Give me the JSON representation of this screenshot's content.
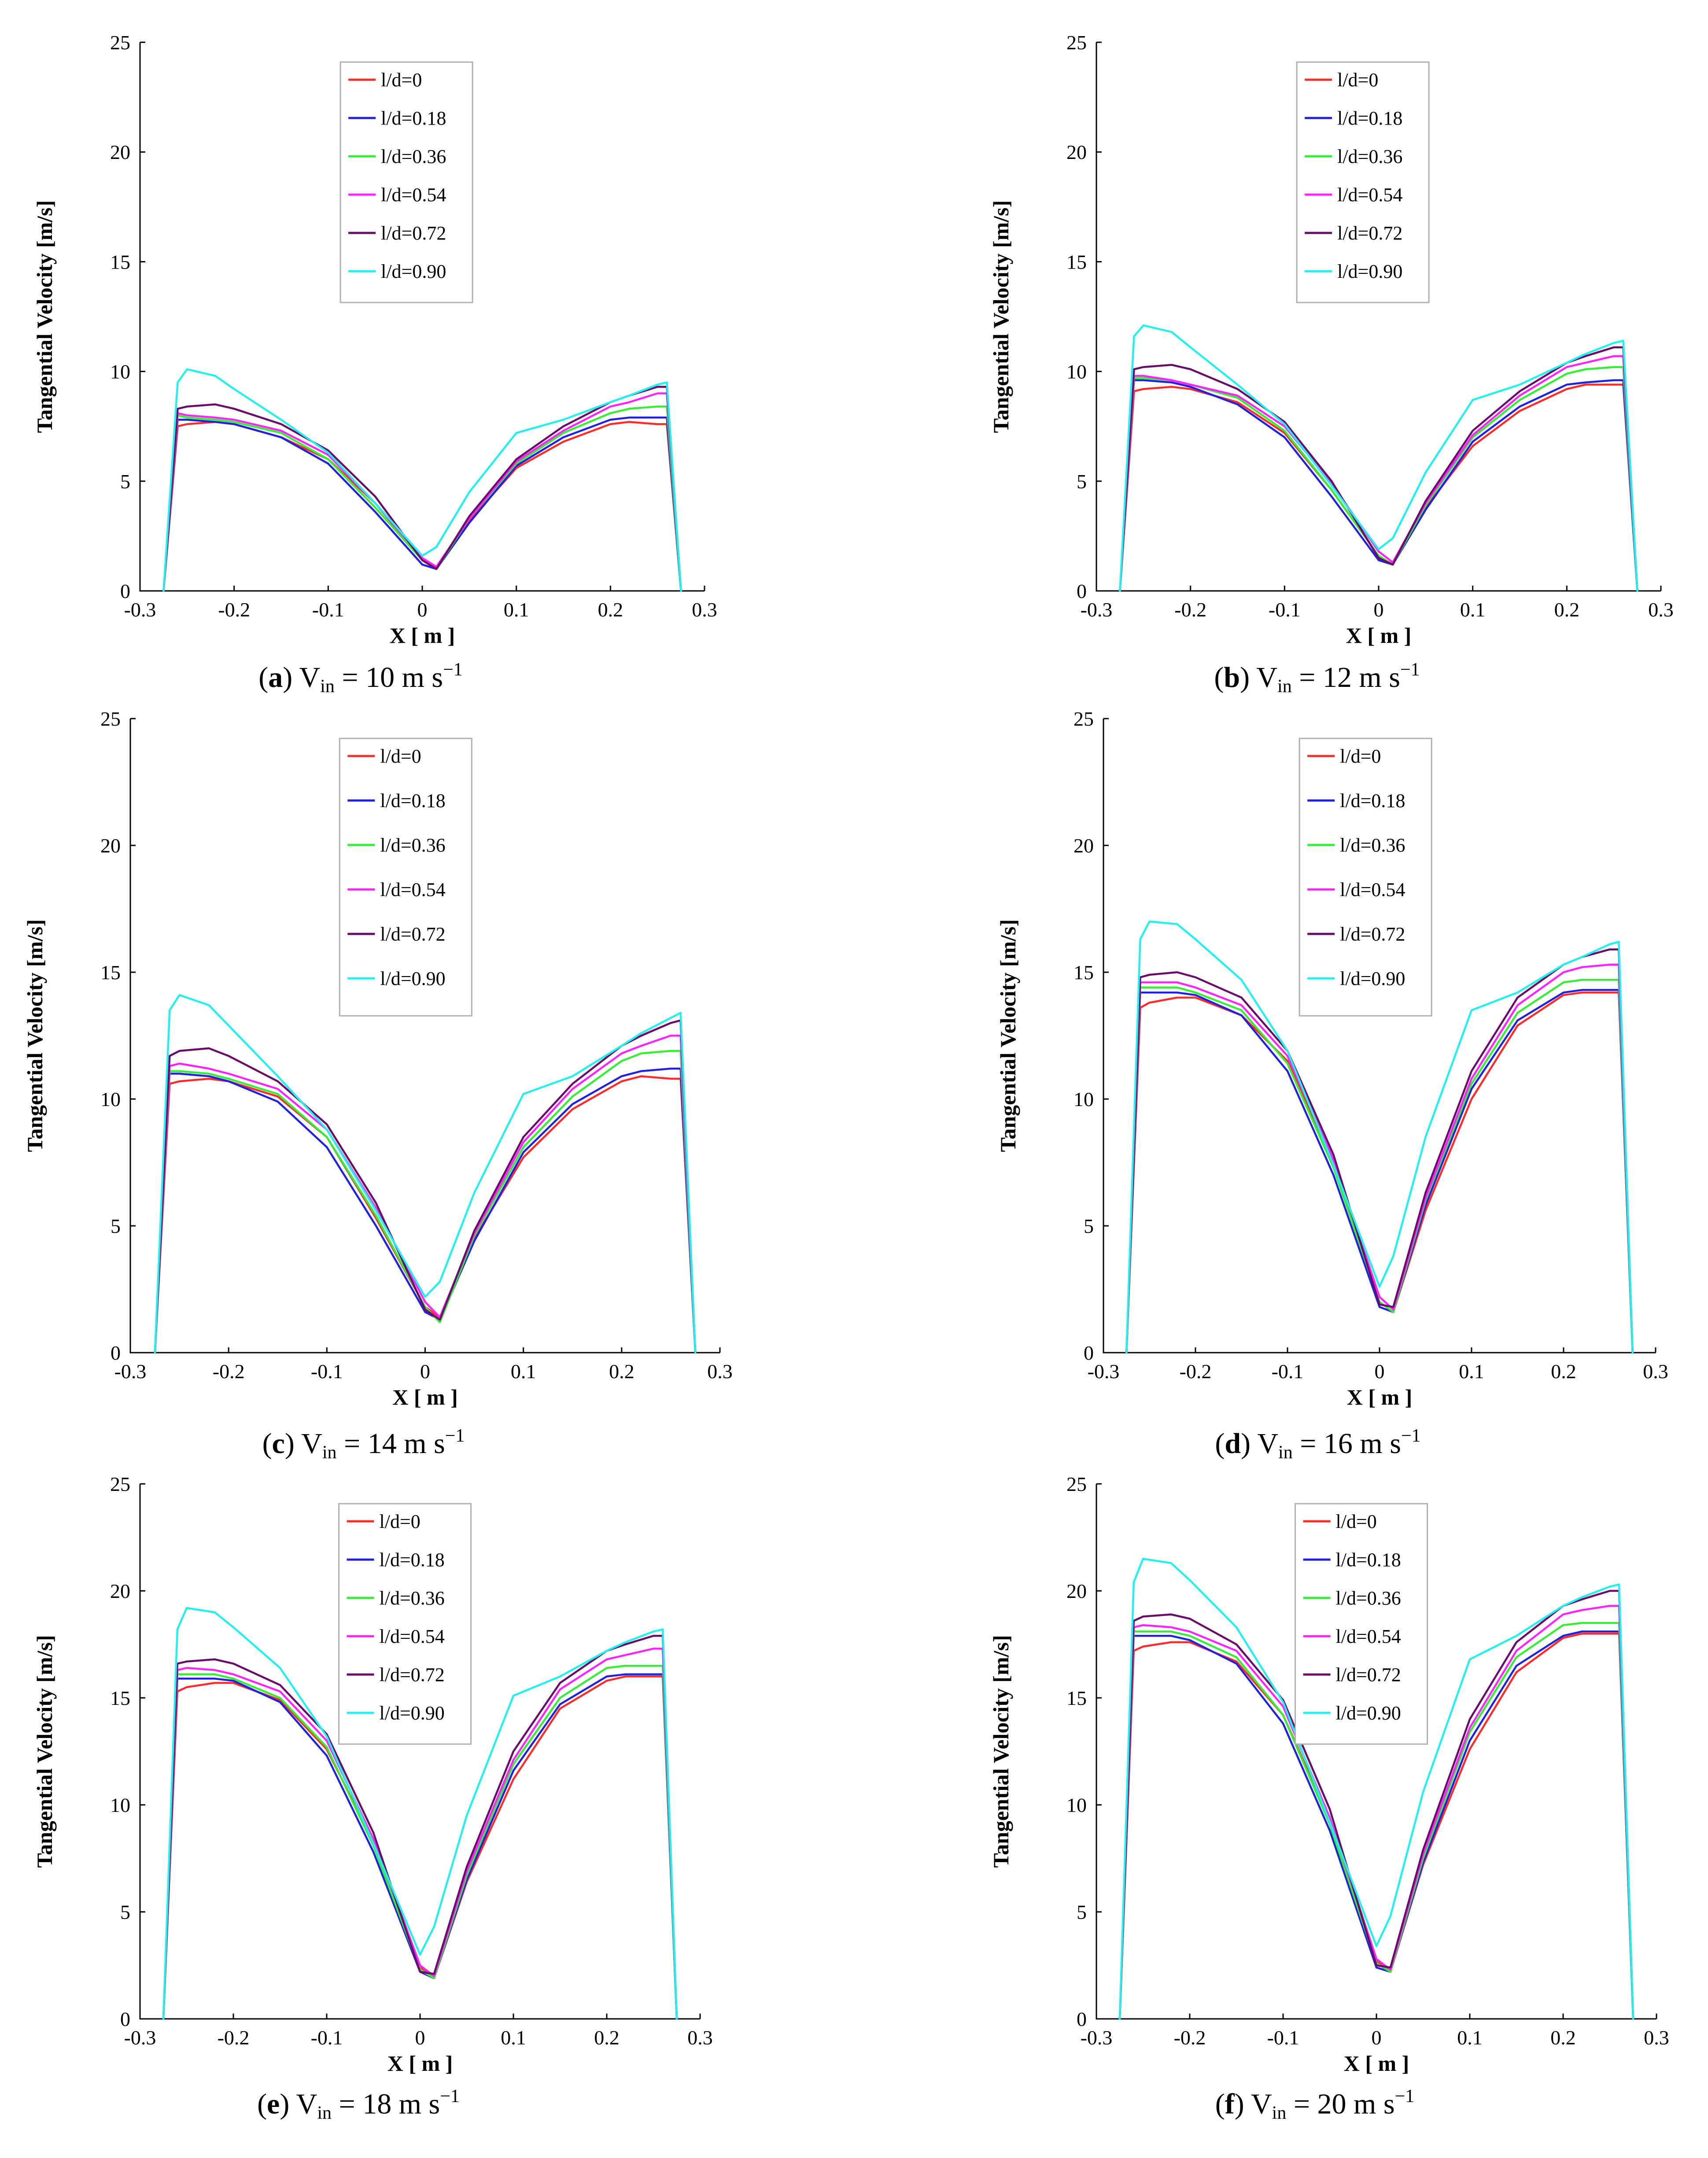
{
  "colors": {
    "l/d=0": "#ff2a2a",
    "l/d=0.18": "#2020e0",
    "l/d=0.36": "#33ee33",
    "l/d=0.54": "#ff22ff",
    "l/d=0.72": "#6a0a6a",
    "l/d=0.90": "#22f0f0"
  },
  "chart_data": [
    {
      "type": "line",
      "caption": {
        "letter": "a",
        "text": "V",
        "sub": "in",
        "rest": " = 10 m s",
        "sup": "−1"
      },
      "xlabel": "X [ m ]",
      "ylabel": "Tangential Velocity [m/s]",
      "xlim": [
        -0.3,
        0.3
      ],
      "ylim": [
        0,
        25
      ],
      "xticks": [
        "-0.3",
        "-0.2",
        "-0.1",
        "0",
        "0.1",
        "0.2",
        "0.3"
      ],
      "yticks": [
        "0",
        "5",
        "10",
        "15",
        "20",
        "25"
      ],
      "x": [
        -0.275,
        -0.26,
        -0.25,
        -0.22,
        -0.2,
        -0.15,
        -0.1,
        -0.05,
        0,
        0.015,
        0.05,
        0.1,
        0.15,
        0.2,
        0.22,
        0.25,
        0.26,
        0.275
      ],
      "series": [
        {
          "name": "l/d=0",
          "values": [
            0,
            7.5,
            7.6,
            7.7,
            7.6,
            7.0,
            6.0,
            4.0,
            1.4,
            1.0,
            3.2,
            5.6,
            6.8,
            7.6,
            7.7,
            7.6,
            7.6,
            0
          ]
        },
        {
          "name": "l/d=0.18",
          "values": [
            0,
            7.8,
            7.8,
            7.7,
            7.6,
            7.0,
            5.8,
            3.6,
            1.2,
            1.0,
            3.1,
            5.7,
            7.0,
            7.8,
            7.9,
            7.9,
            7.9,
            0
          ]
        },
        {
          "name": "l/d=0.36",
          "values": [
            0,
            8.0,
            7.9,
            7.8,
            7.7,
            7.2,
            6.0,
            3.8,
            1.4,
            1.0,
            3.3,
            5.8,
            7.2,
            8.1,
            8.3,
            8.4,
            8.4,
            0
          ]
        },
        {
          "name": "l/d=0.54",
          "values": [
            0,
            8.1,
            8.0,
            7.9,
            7.8,
            7.3,
            6.2,
            4.0,
            1.5,
            1.1,
            3.3,
            5.9,
            7.3,
            8.4,
            8.6,
            9.0,
            9.0,
            0
          ]
        },
        {
          "name": "l/d=0.72",
          "values": [
            0,
            8.3,
            8.4,
            8.5,
            8.3,
            7.6,
            6.4,
            4.3,
            1.4,
            1.0,
            3.4,
            6.0,
            7.5,
            8.6,
            8.9,
            9.3,
            9.3,
            0
          ]
        },
        {
          "name": "l/d=0.90",
          "values": [
            0,
            9.5,
            10.1,
            9.8,
            9.2,
            7.8,
            6.3,
            4.0,
            1.6,
            2.0,
            4.5,
            7.2,
            7.8,
            8.6,
            8.9,
            9.4,
            9.5,
            0
          ]
        }
      ]
    },
    {
      "type": "line",
      "caption": {
        "letter": "b",
        "text": "V",
        "sub": "in",
        "rest": " = 12 m s",
        "sup": "−1"
      },
      "xlabel": "X [ m ]",
      "ylabel": "Tangential Velocity [m/s]",
      "xlim": [
        -0.3,
        0.3
      ],
      "ylim": [
        0,
        25
      ],
      "xticks": [
        "-0.3",
        "-0.2",
        "-0.1",
        "0",
        "0.1",
        "0.2",
        "0.3"
      ],
      "yticks": [
        "0",
        "5",
        "10",
        "15",
        "20",
        "25"
      ],
      "x": [
        -0.275,
        -0.26,
        -0.25,
        -0.22,
        -0.2,
        -0.15,
        -0.1,
        -0.05,
        0,
        0.015,
        0.05,
        0.1,
        0.15,
        0.2,
        0.22,
        0.25,
        0.26,
        0.275
      ],
      "series": [
        {
          "name": "l/d=0",
          "values": [
            0,
            9.1,
            9.2,
            9.3,
            9.2,
            8.6,
            7.2,
            4.6,
            1.6,
            1.2,
            3.8,
            6.6,
            8.2,
            9.2,
            9.4,
            9.4,
            9.4,
            0
          ]
        },
        {
          "name": "l/d=0.18",
          "values": [
            0,
            9.6,
            9.6,
            9.5,
            9.3,
            8.5,
            7.0,
            4.3,
            1.4,
            1.2,
            3.7,
            6.8,
            8.4,
            9.4,
            9.5,
            9.6,
            9.6,
            0
          ]
        },
        {
          "name": "l/d=0.36",
          "values": [
            0,
            9.7,
            9.7,
            9.6,
            9.4,
            8.8,
            7.3,
            4.6,
            1.6,
            1.2,
            3.9,
            7.0,
            8.7,
            9.9,
            10.1,
            10.2,
            10.2,
            0
          ]
        },
        {
          "name": "l/d=0.54",
          "values": [
            0,
            9.8,
            9.8,
            9.6,
            9.4,
            8.9,
            7.5,
            4.9,
            1.8,
            1.3,
            4.0,
            7.1,
            8.9,
            10.2,
            10.4,
            10.7,
            10.7,
            0
          ]
        },
        {
          "name": "l/d=0.72",
          "values": [
            0,
            10.1,
            10.2,
            10.3,
            10.1,
            9.2,
            7.7,
            5.0,
            1.5,
            1.2,
            4.1,
            7.3,
            9.1,
            10.4,
            10.7,
            11.1,
            11.1,
            0
          ]
        },
        {
          "name": "l/d=0.90",
          "values": [
            0,
            11.6,
            12.1,
            11.8,
            11.1,
            9.4,
            7.6,
            4.8,
            1.9,
            2.4,
            5.4,
            8.7,
            9.4,
            10.4,
            10.8,
            11.3,
            11.4,
            0
          ]
        }
      ]
    },
    {
      "type": "line",
      "caption": {
        "letter": "c",
        "text": "V",
        "sub": "in",
        "rest": " = 14 m s",
        "sup": "−1"
      },
      "xlabel": "X [ m ]",
      "ylabel": "Tangential Velocity [m/s]",
      "xlim": [
        -0.3,
        0.3
      ],
      "ylim": [
        0,
        25
      ],
      "xticks": [
        "-0.3",
        "-0.2",
        "-0.1",
        "0",
        "0.1",
        "0.2",
        "0.3"
      ],
      "yticks": [
        "0",
        "5",
        "10",
        "15",
        "20",
        "25"
      ],
      "x": [
        -0.275,
        -0.26,
        -0.25,
        -0.22,
        -0.2,
        -0.15,
        -0.1,
        -0.05,
        0,
        0.015,
        0.05,
        0.1,
        0.15,
        0.2,
        0.22,
        0.25,
        0.26,
        0.275
      ],
      "series": [
        {
          "name": "l/d=0",
          "values": [
            0,
            10.6,
            10.7,
            10.8,
            10.7,
            10.1,
            8.5,
            5.3,
            1.8,
            1.4,
            4.5,
            7.7,
            9.6,
            10.7,
            10.9,
            10.8,
            10.8,
            0
          ]
        },
        {
          "name": "l/d=0.18",
          "values": [
            0,
            11.0,
            11.0,
            10.9,
            10.7,
            9.9,
            8.1,
            5.0,
            1.6,
            1.3,
            4.4,
            7.9,
            9.8,
            10.9,
            11.1,
            11.2,
            11.2,
            0
          ]
        },
        {
          "name": "l/d=0.36",
          "values": [
            0,
            11.1,
            11.1,
            11.0,
            10.8,
            10.2,
            8.5,
            5.4,
            1.8,
            1.2,
            4.6,
            8.1,
            10.1,
            11.5,
            11.8,
            11.9,
            11.9,
            0
          ]
        },
        {
          "name": "l/d=0.54",
          "values": [
            0,
            11.3,
            11.4,
            11.2,
            11.0,
            10.4,
            8.8,
            5.7,
            2.0,
            1.4,
            4.7,
            8.3,
            10.4,
            11.8,
            12.1,
            12.5,
            12.5,
            0
          ]
        },
        {
          "name": "l/d=0.72",
          "values": [
            0,
            11.7,
            11.9,
            12.0,
            11.7,
            10.7,
            9.0,
            5.9,
            1.7,
            1.3,
            4.8,
            8.5,
            10.6,
            12.1,
            12.5,
            13.0,
            13.1,
            0
          ]
        },
        {
          "name": "l/d=0.90",
          "values": [
            0,
            13.5,
            14.1,
            13.7,
            12.9,
            10.9,
            8.8,
            5.6,
            2.2,
            2.8,
            6.3,
            10.2,
            10.9,
            12.1,
            12.6,
            13.2,
            13.4,
            0
          ]
        }
      ]
    },
    {
      "type": "line",
      "caption": {
        "letter": "d",
        "text": "V",
        "sub": "in",
        "rest": " = 16 m s",
        "sup": "−1"
      },
      "xlabel": "X [ m ]",
      "ylabel": "Tangential Velocity [m/s]",
      "xlim": [
        -0.3,
        0.3
      ],
      "ylim": [
        0,
        25
      ],
      "xticks": [
        "-0.3",
        "-0.2",
        "-0.1",
        "0",
        "0.1",
        "0.2",
        "0.3"
      ],
      "yticks": [
        "0",
        "5",
        "10",
        "15",
        "20",
        "25"
      ],
      "x": [
        -0.275,
        -0.26,
        -0.25,
        -0.22,
        -0.2,
        -0.15,
        -0.1,
        -0.05,
        0,
        0.015,
        0.05,
        0.1,
        0.15,
        0.2,
        0.22,
        0.25,
        0.26,
        0.275
      ],
      "series": [
        {
          "name": "l/d=0",
          "values": [
            0,
            13.6,
            13.8,
            14.0,
            14.0,
            13.3,
            11.5,
            7.5,
            2.0,
            1.6,
            5.6,
            10.0,
            12.9,
            14.1,
            14.2,
            14.2,
            14.2,
            0
          ]
        },
        {
          "name": "l/d=0.18",
          "values": [
            0,
            14.2,
            14.2,
            14.2,
            14.1,
            13.3,
            11.1,
            7.0,
            1.8,
            1.6,
            5.8,
            10.4,
            13.1,
            14.2,
            14.3,
            14.3,
            14.3,
            0
          ]
        },
        {
          "name": "l/d=0.36",
          "values": [
            0,
            14.4,
            14.4,
            14.4,
            14.2,
            13.5,
            11.4,
            7.3,
            2.0,
            1.6,
            6.0,
            10.6,
            13.4,
            14.6,
            14.7,
            14.7,
            14.7,
            0
          ]
        },
        {
          "name": "l/d=0.54",
          "values": [
            0,
            14.6,
            14.6,
            14.6,
            14.4,
            13.7,
            11.7,
            7.6,
            2.2,
            1.7,
            6.1,
            10.8,
            13.7,
            15.0,
            15.2,
            15.3,
            15.3,
            0
          ]
        },
        {
          "name": "l/d=0.72",
          "values": [
            0,
            14.8,
            14.9,
            15.0,
            14.8,
            14.0,
            11.9,
            7.8,
            1.9,
            1.8,
            6.3,
            11.1,
            14.0,
            15.3,
            15.6,
            15.9,
            15.9,
            0
          ]
        },
        {
          "name": "l/d=0.90",
          "values": [
            0,
            16.3,
            17.0,
            16.9,
            16.3,
            14.7,
            11.9,
            7.4,
            2.6,
            3.8,
            8.5,
            13.5,
            14.2,
            15.3,
            15.6,
            16.1,
            16.2,
            0
          ]
        }
      ]
    },
    {
      "type": "line",
      "caption": {
        "letter": "e",
        "text": "V",
        "sub": "in",
        "rest": " = 18 m s",
        "sup": "−1"
      },
      "xlabel": "X [ m ]",
      "ylabel": "Tangential Velocity [m/s]",
      "xlim": [
        -0.3,
        0.3
      ],
      "ylim": [
        0,
        25
      ],
      "xticks": [
        "-0.3",
        "-0.2",
        "-0.1",
        "0",
        "0.1",
        "0.2",
        "0.3"
      ],
      "yticks": [
        "0",
        "5",
        "10",
        "15",
        "20",
        "25"
      ],
      "x": [
        -0.275,
        -0.26,
        -0.25,
        -0.22,
        -0.2,
        -0.15,
        -0.1,
        -0.05,
        0,
        0.015,
        0.05,
        0.1,
        0.15,
        0.2,
        0.22,
        0.25,
        0.26,
        0.275
      ],
      "series": [
        {
          "name": "l/d=0",
          "values": [
            0,
            15.3,
            15.5,
            15.7,
            15.7,
            14.9,
            12.6,
            8.3,
            2.4,
            1.9,
            6.4,
            11.2,
            14.5,
            15.8,
            16.0,
            16.0,
            16.0,
            0
          ]
        },
        {
          "name": "l/d=0.18",
          "values": [
            0,
            15.9,
            15.9,
            15.9,
            15.8,
            14.8,
            12.3,
            7.8,
            2.2,
            1.9,
            6.5,
            11.6,
            14.7,
            16.0,
            16.1,
            16.1,
            16.1,
            0
          ]
        },
        {
          "name": "l/d=0.36",
          "values": [
            0,
            16.1,
            16.1,
            16.1,
            15.9,
            15.0,
            12.7,
            8.1,
            2.3,
            1.9,
            6.7,
            11.9,
            15.0,
            16.4,
            16.5,
            16.5,
            16.5,
            0
          ]
        },
        {
          "name": "l/d=0.54",
          "values": [
            0,
            16.3,
            16.4,
            16.3,
            16.1,
            15.3,
            13.0,
            8.4,
            2.5,
            2.0,
            6.9,
            12.1,
            15.4,
            16.8,
            17.0,
            17.3,
            17.3,
            0
          ]
        },
        {
          "name": "l/d=0.72",
          "values": [
            0,
            16.6,
            16.7,
            16.8,
            16.6,
            15.6,
            13.3,
            8.7,
            2.2,
            2.1,
            7.1,
            12.5,
            15.7,
            17.2,
            17.5,
            17.9,
            17.9,
            0
          ]
        },
        {
          "name": "l/d=0.90",
          "values": [
            0,
            18.2,
            19.2,
            19.0,
            18.3,
            16.4,
            13.2,
            8.2,
            3.0,
            4.3,
            9.5,
            15.1,
            16.0,
            17.2,
            17.6,
            18.1,
            18.2,
            0
          ]
        }
      ]
    },
    {
      "type": "line",
      "caption": {
        "letter": "f",
        "text": "V",
        "sub": "in",
        "rest": " = 20 m s",
        "sup": "−1"
      },
      "xlabel": "X [ m ]",
      "ylabel": "Tangential Velocity [m/s]",
      "xlim": [
        -0.3,
        0.3
      ],
      "ylim": [
        0,
        25
      ],
      "xticks": [
        "-0.3",
        "-0.2",
        "-0.1",
        "0",
        "0.1",
        "0.2",
        "0.3"
      ],
      "yticks": [
        "0",
        "5",
        "10",
        "15",
        "20",
        "25"
      ],
      "x": [
        -0.275,
        -0.26,
        -0.25,
        -0.22,
        -0.2,
        -0.15,
        -0.1,
        -0.05,
        0,
        0.015,
        0.05,
        0.1,
        0.15,
        0.2,
        0.22,
        0.25,
        0.26,
        0.275
      ],
      "series": [
        {
          "name": "l/d=0",
          "values": [
            0,
            17.2,
            17.4,
            17.6,
            17.6,
            16.7,
            14.2,
            9.3,
            2.7,
            2.2,
            7.2,
            12.6,
            16.2,
            17.8,
            18.0,
            18.0,
            18.0,
            0
          ]
        },
        {
          "name": "l/d=0.18",
          "values": [
            0,
            17.9,
            17.9,
            17.9,
            17.7,
            16.6,
            13.8,
            8.8,
            2.4,
            2.2,
            7.3,
            13.0,
            16.5,
            17.9,
            18.1,
            18.1,
            18.1,
            0
          ]
        },
        {
          "name": "l/d=0.36",
          "values": [
            0,
            18.1,
            18.1,
            18.1,
            17.9,
            16.9,
            14.2,
            9.1,
            2.6,
            2.2,
            7.5,
            13.4,
            16.9,
            18.4,
            18.5,
            18.5,
            18.5,
            0
          ]
        },
        {
          "name": "l/d=0.54",
          "values": [
            0,
            18.3,
            18.4,
            18.3,
            18.1,
            17.2,
            14.6,
            9.4,
            2.8,
            2.3,
            7.7,
            13.6,
            17.2,
            18.9,
            19.1,
            19.3,
            19.3,
            0
          ]
        },
        {
          "name": "l/d=0.72",
          "values": [
            0,
            18.6,
            18.8,
            18.9,
            18.7,
            17.5,
            14.9,
            9.8,
            2.5,
            2.4,
            7.9,
            14.0,
            17.6,
            19.3,
            19.6,
            20.0,
            20.0,
            0
          ]
        },
        {
          "name": "l/d=0.90",
          "values": [
            0,
            20.4,
            21.5,
            21.3,
            20.5,
            18.3,
            14.8,
            9.2,
            3.4,
            4.8,
            10.6,
            16.8,
            17.9,
            19.3,
            19.7,
            20.2,
            20.3,
            0
          ]
        }
      ]
    }
  ]
}
